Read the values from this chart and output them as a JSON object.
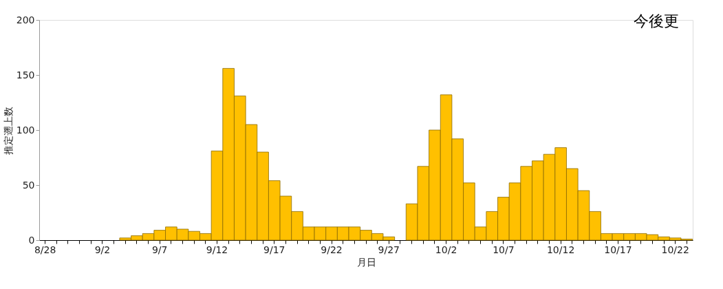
{
  "chart_data": {
    "type": "bar",
    "xlabel": "月日",
    "ylabel": "推定遡上数",
    "categories": [
      "8/28",
      null,
      null,
      null,
      null,
      "9/2",
      null,
      null,
      null,
      null,
      "9/7",
      null,
      null,
      null,
      null,
      "9/12",
      null,
      null,
      null,
      null,
      "9/17",
      null,
      null,
      null,
      null,
      "9/22",
      null,
      null,
      null,
      null,
      "9/27",
      null,
      null,
      null,
      null,
      "10/2",
      null,
      null,
      null,
      null,
      "10/7",
      null,
      null,
      null,
      null,
      "10/12",
      null,
      null,
      null,
      null,
      "10/17",
      null,
      null,
      null,
      null,
      "10/22",
      null
    ],
    "values": [
      0,
      0,
      0,
      0,
      0,
      0,
      0,
      2,
      4,
      6,
      9,
      12,
      10,
      8,
      6,
      81,
      156,
      131,
      105,
      80,
      54,
      40,
      26,
      12,
      12,
      12,
      12,
      12,
      9,
      6,
      3,
      0,
      33,
      67,
      100,
      132,
      92,
      52,
      12,
      26,
      39,
      52,
      67,
      72,
      78,
      84,
      65,
      45,
      26,
      6,
      6,
      6,
      6,
      5,
      3,
      2,
      1
    ],
    "color": "#ffc000",
    "ylim": [
      0,
      200
    ],
    "yticks": [
      0,
      50,
      100,
      150,
      200
    ],
    "grid": false,
    "annotations": [
      "今後更"
    ]
  }
}
